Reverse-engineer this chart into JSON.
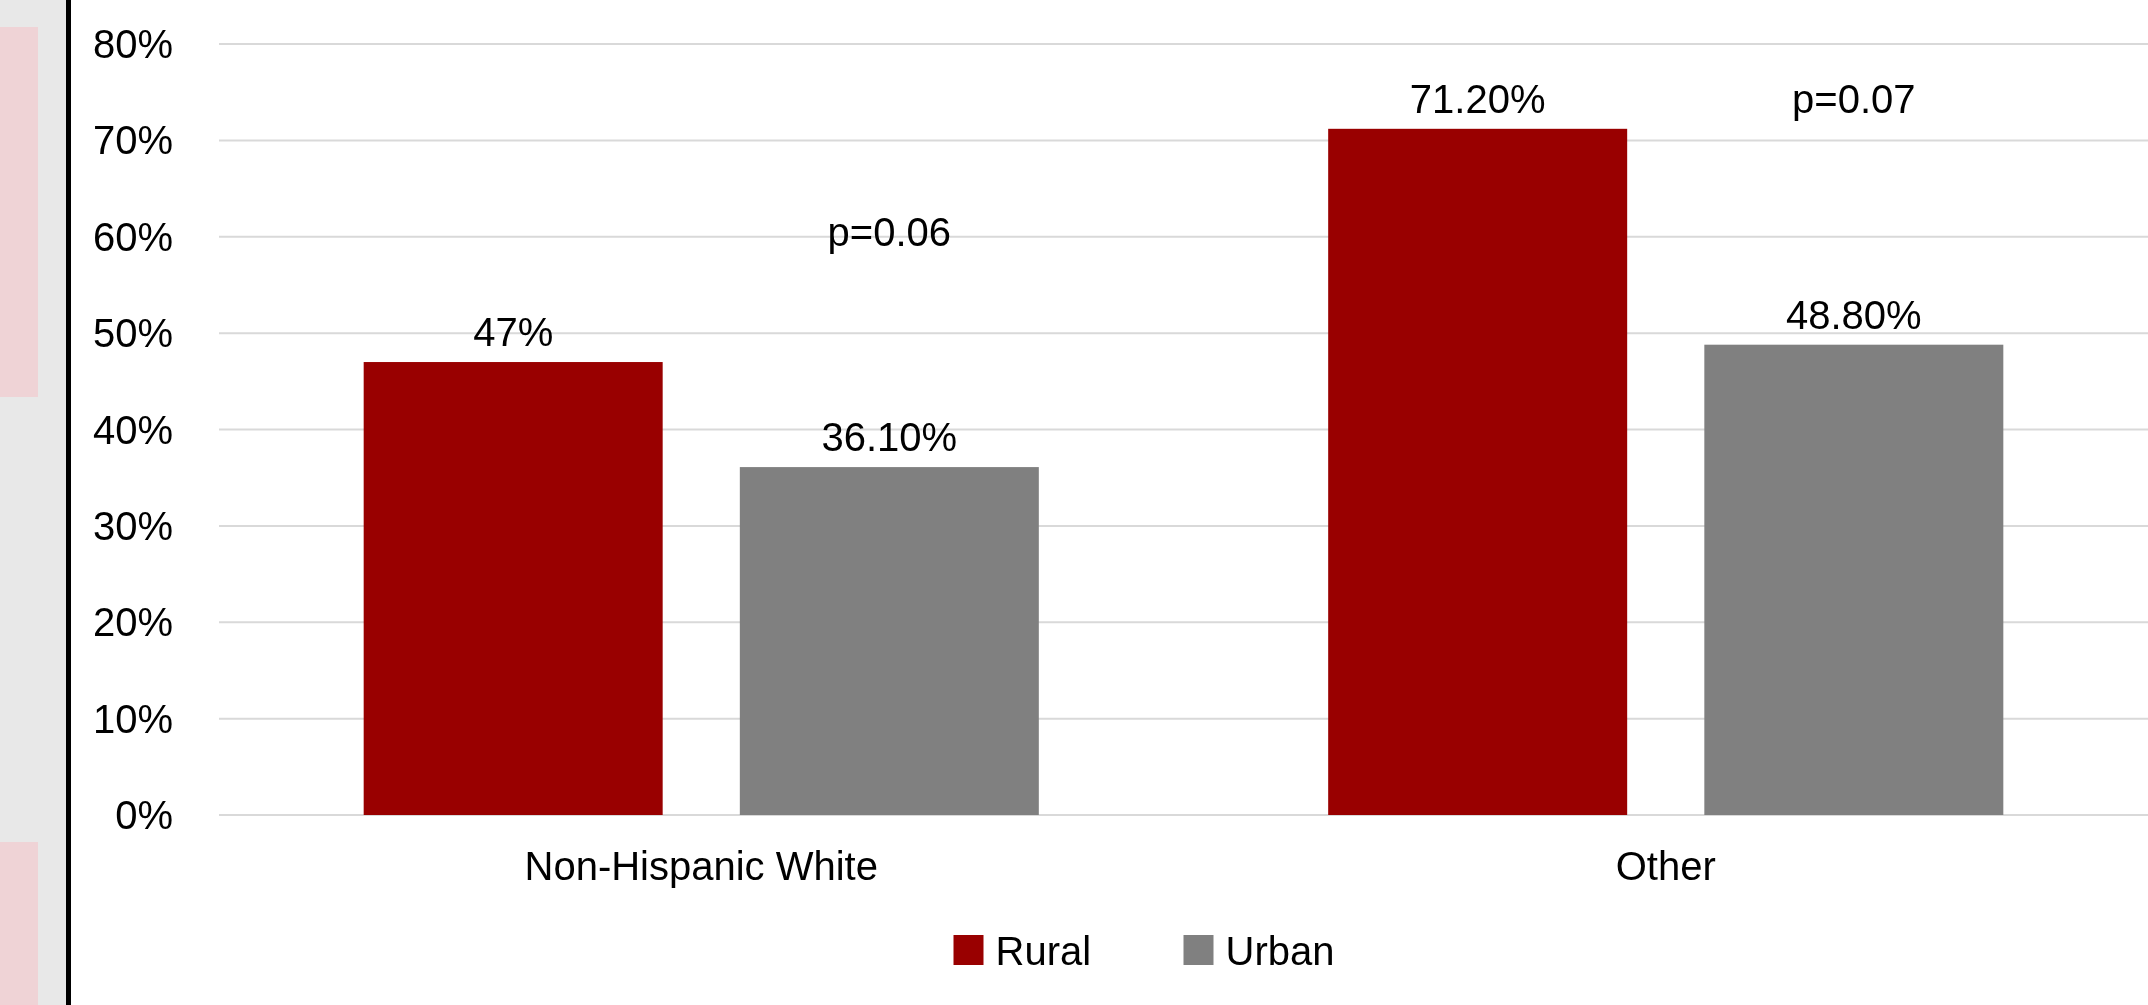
{
  "chart_data": {
    "type": "bar",
    "categories": [
      "Non-Hispanic White",
      "Other"
    ],
    "series": [
      {
        "name": "Rural",
        "color": "#990000",
        "values": [
          47,
          71.2
        ],
        "value_labels": [
          "47%",
          "71.20%"
        ]
      },
      {
        "name": "Urban",
        "color": "#808080",
        "values": [
          36.1,
          48.8
        ],
        "value_labels": [
          "36.10%",
          "48.80%"
        ]
      }
    ],
    "ylim": [
      0,
      80
    ],
    "yticks": [
      {
        "value": 0,
        "label": "0%"
      },
      {
        "value": 10,
        "label": "10%"
      },
      {
        "value": 20,
        "label": "20%"
      },
      {
        "value": 30,
        "label": "30%"
      },
      {
        "value": 40,
        "label": "40%"
      },
      {
        "value": 50,
        "label": "50%"
      },
      {
        "value": 60,
        "label": "60%"
      },
      {
        "value": 70,
        "label": "70%"
      },
      {
        "value": 80,
        "label": "80%"
      }
    ],
    "grid": "y",
    "legend": "bottom",
    "annotations": [
      "p=0.06",
      "p=0.07"
    ]
  }
}
